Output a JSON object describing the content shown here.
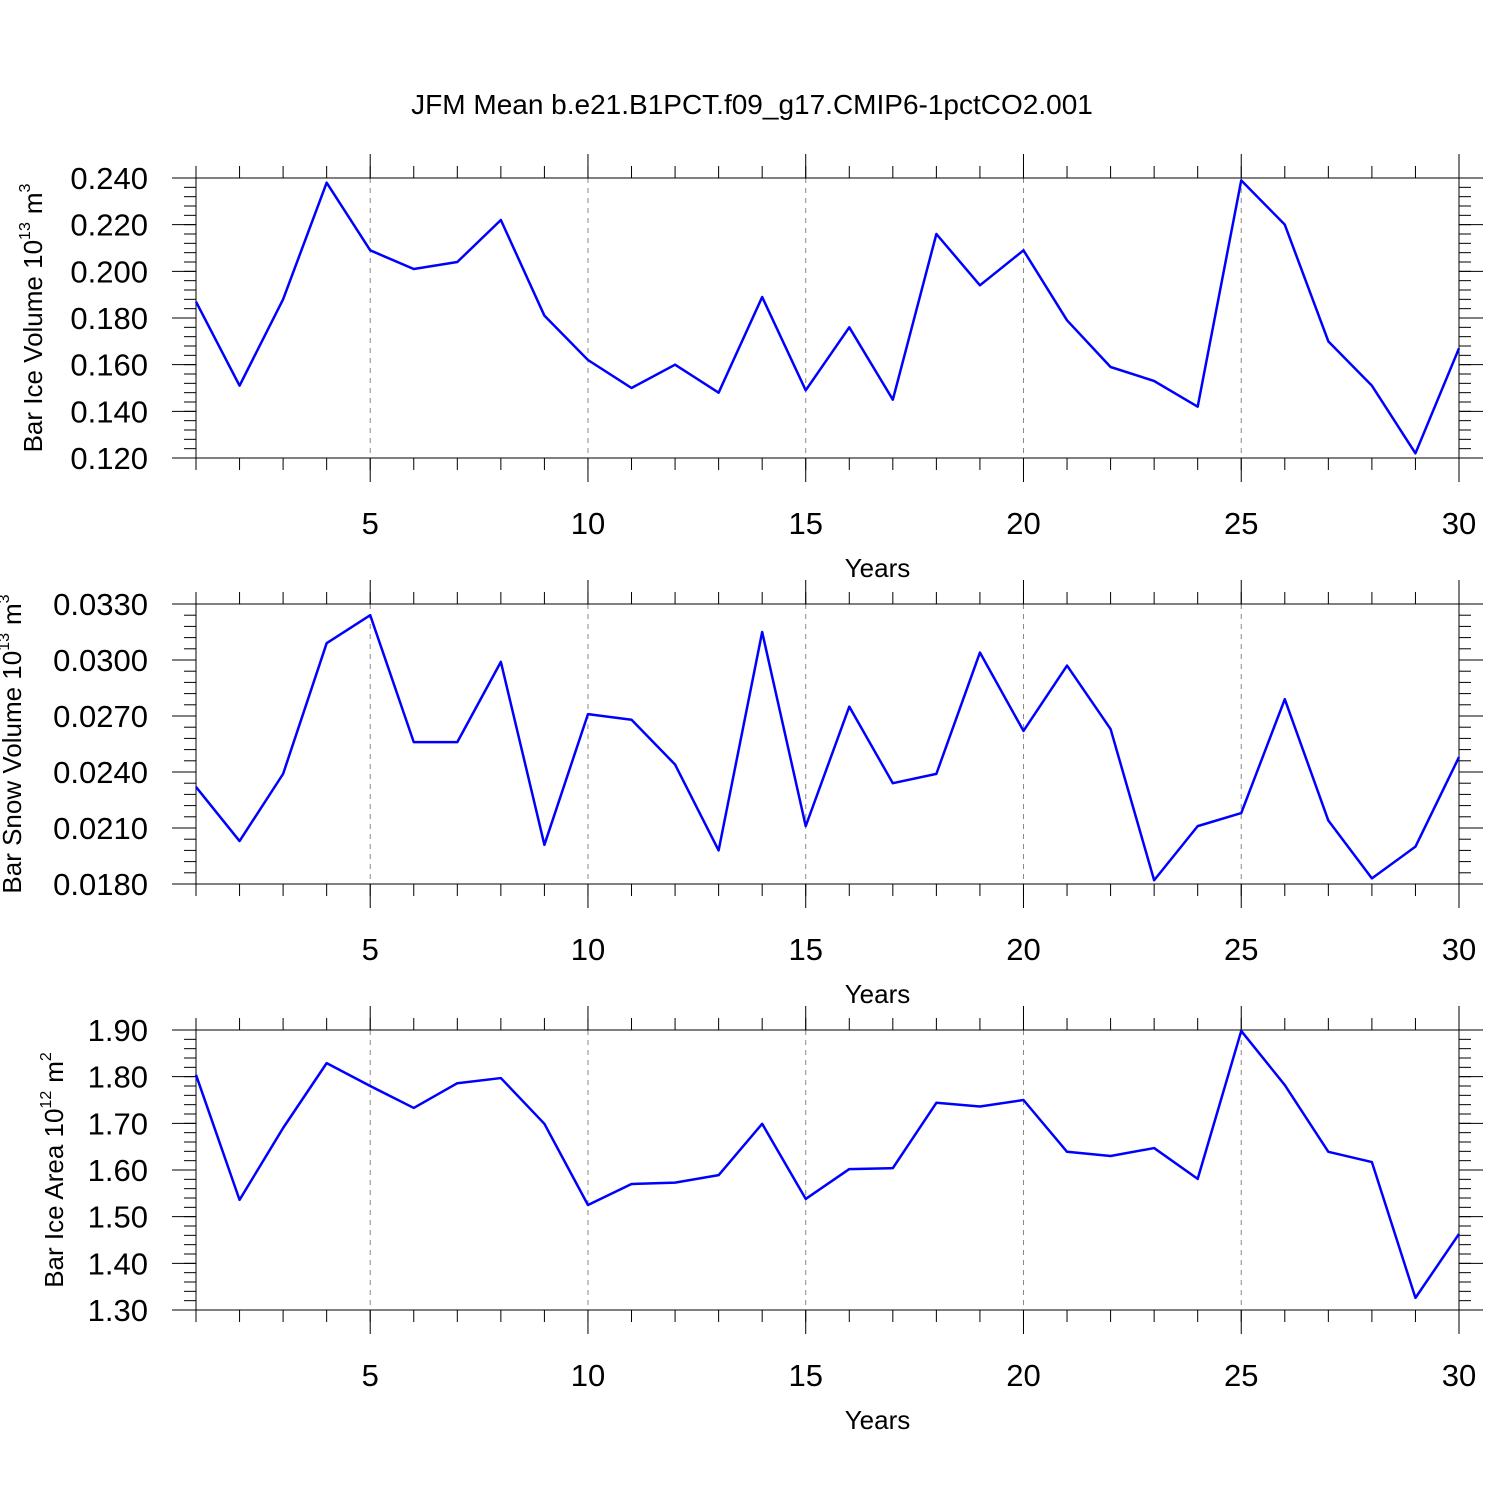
{
  "chart_data": [
    {
      "type": "line",
      "title": "JFM Mean b.e21.B1PCT.f09_g17.CMIP6-1pctCO2.001",
      "ylabel": {
        "base": "Bar Ice Volume 10",
        "exp": "13",
        "unit": "m",
        "unit_exp": "3"
      },
      "xlabel": "Years",
      "x": [
        1,
        2,
        3,
        4,
        5,
        6,
        7,
        8,
        9,
        10,
        11,
        12,
        13,
        14,
        15,
        16,
        17,
        18,
        19,
        20,
        21,
        22,
        23,
        24,
        25,
        26,
        27,
        28,
        29,
        30
      ],
      "values": [
        0.187,
        0.151,
        0.188,
        0.238,
        0.209,
        0.201,
        0.204,
        0.222,
        0.181,
        0.162,
        0.15,
        0.16,
        0.148,
        0.189,
        0.149,
        0.176,
        0.145,
        0.216,
        0.194,
        0.209,
        0.179,
        0.159,
        0.153,
        0.142,
        0.239,
        0.22,
        0.17,
        0.151,
        0.122,
        0.167
      ],
      "color": "#0000ff",
      "xlim": [
        1,
        30
      ],
      "xticks": [
        5,
        10,
        15,
        20,
        25,
        30
      ],
      "ylim": [
        0.12,
        0.24
      ],
      "yticks": [
        {
          "value": 0.12,
          "label": "0.120"
        },
        {
          "value": 0.14,
          "label": "0.140"
        },
        {
          "value": 0.16,
          "label": "0.160"
        },
        {
          "value": 0.18,
          "label": "0.180"
        },
        {
          "value": 0.2,
          "label": "0.200"
        },
        {
          "value": 0.22,
          "label": "0.220"
        },
        {
          "value": 0.24,
          "label": "0.240"
        }
      ],
      "grid": true
    },
    {
      "type": "line",
      "ylabel": {
        "base": "Bar Snow Volume 10",
        "exp": "13",
        "unit": "m",
        "unit_exp": "3"
      },
      "xlabel": "Years",
      "x": [
        1,
        2,
        3,
        4,
        5,
        6,
        7,
        8,
        9,
        10,
        11,
        12,
        13,
        14,
        15,
        16,
        17,
        18,
        19,
        20,
        21,
        22,
        23,
        24,
        25,
        26,
        27,
        28,
        29,
        30
      ],
      "values": [
        0.0232,
        0.0203,
        0.0239,
        0.0309,
        0.0324,
        0.0256,
        0.0256,
        0.0299,
        0.0201,
        0.0271,
        0.0268,
        0.0244,
        0.0198,
        0.0315,
        0.0211,
        0.0275,
        0.0234,
        0.0239,
        0.0304,
        0.0262,
        0.0297,
        0.0263,
        0.0182,
        0.0211,
        0.0218,
        0.0279,
        0.0214,
        0.0183,
        0.02,
        0.0248
      ],
      "color": "#0000ff",
      "xlim": [
        1,
        30
      ],
      "xticks": [
        5,
        10,
        15,
        20,
        25,
        30
      ],
      "ylim": [
        0.018,
        0.033
      ],
      "yticks": [
        {
          "value": 0.018,
          "label": "0.0180"
        },
        {
          "value": 0.021,
          "label": "0.0210"
        },
        {
          "value": 0.024,
          "label": "0.0240"
        },
        {
          "value": 0.027,
          "label": "0.0270"
        },
        {
          "value": 0.03,
          "label": "0.0300"
        },
        {
          "value": 0.033,
          "label": "0.0330"
        }
      ],
      "grid": true
    },
    {
      "type": "line",
      "ylabel": {
        "base": "Bar Ice Area 10",
        "exp": "12",
        "unit": "m",
        "unit_exp": "2"
      },
      "xlabel": "Years",
      "x": [
        1,
        2,
        3,
        4,
        5,
        6,
        7,
        8,
        9,
        10,
        11,
        12,
        13,
        14,
        15,
        16,
        17,
        18,
        19,
        20,
        21,
        22,
        23,
        24,
        25,
        26,
        27,
        28,
        29,
        30
      ],
      "values": [
        1.804,
        1.536,
        1.69,
        1.829,
        1.78,
        1.733,
        1.786,
        1.797,
        1.699,
        1.525,
        1.57,
        1.573,
        1.589,
        1.699,
        1.538,
        1.602,
        1.604,
        1.744,
        1.736,
        1.75,
        1.639,
        1.63,
        1.647,
        1.581,
        1.898,
        1.782,
        1.639,
        1.617,
        1.326,
        1.463
      ],
      "color": "#0000ff",
      "xlim": [
        1,
        30
      ],
      "xticks": [
        5,
        10,
        15,
        20,
        25,
        30
      ],
      "ylim": [
        1.3,
        1.9
      ],
      "yticks": [
        {
          "value": 1.3,
          "label": "1.30"
        },
        {
          "value": 1.4,
          "label": "1.40"
        },
        {
          "value": 1.5,
          "label": "1.50"
        },
        {
          "value": 1.6,
          "label": "1.60"
        },
        {
          "value": 1.7,
          "label": "1.70"
        },
        {
          "value": 1.8,
          "label": "1.80"
        },
        {
          "value": 1.9,
          "label": "1.90"
        }
      ],
      "grid": true
    }
  ]
}
